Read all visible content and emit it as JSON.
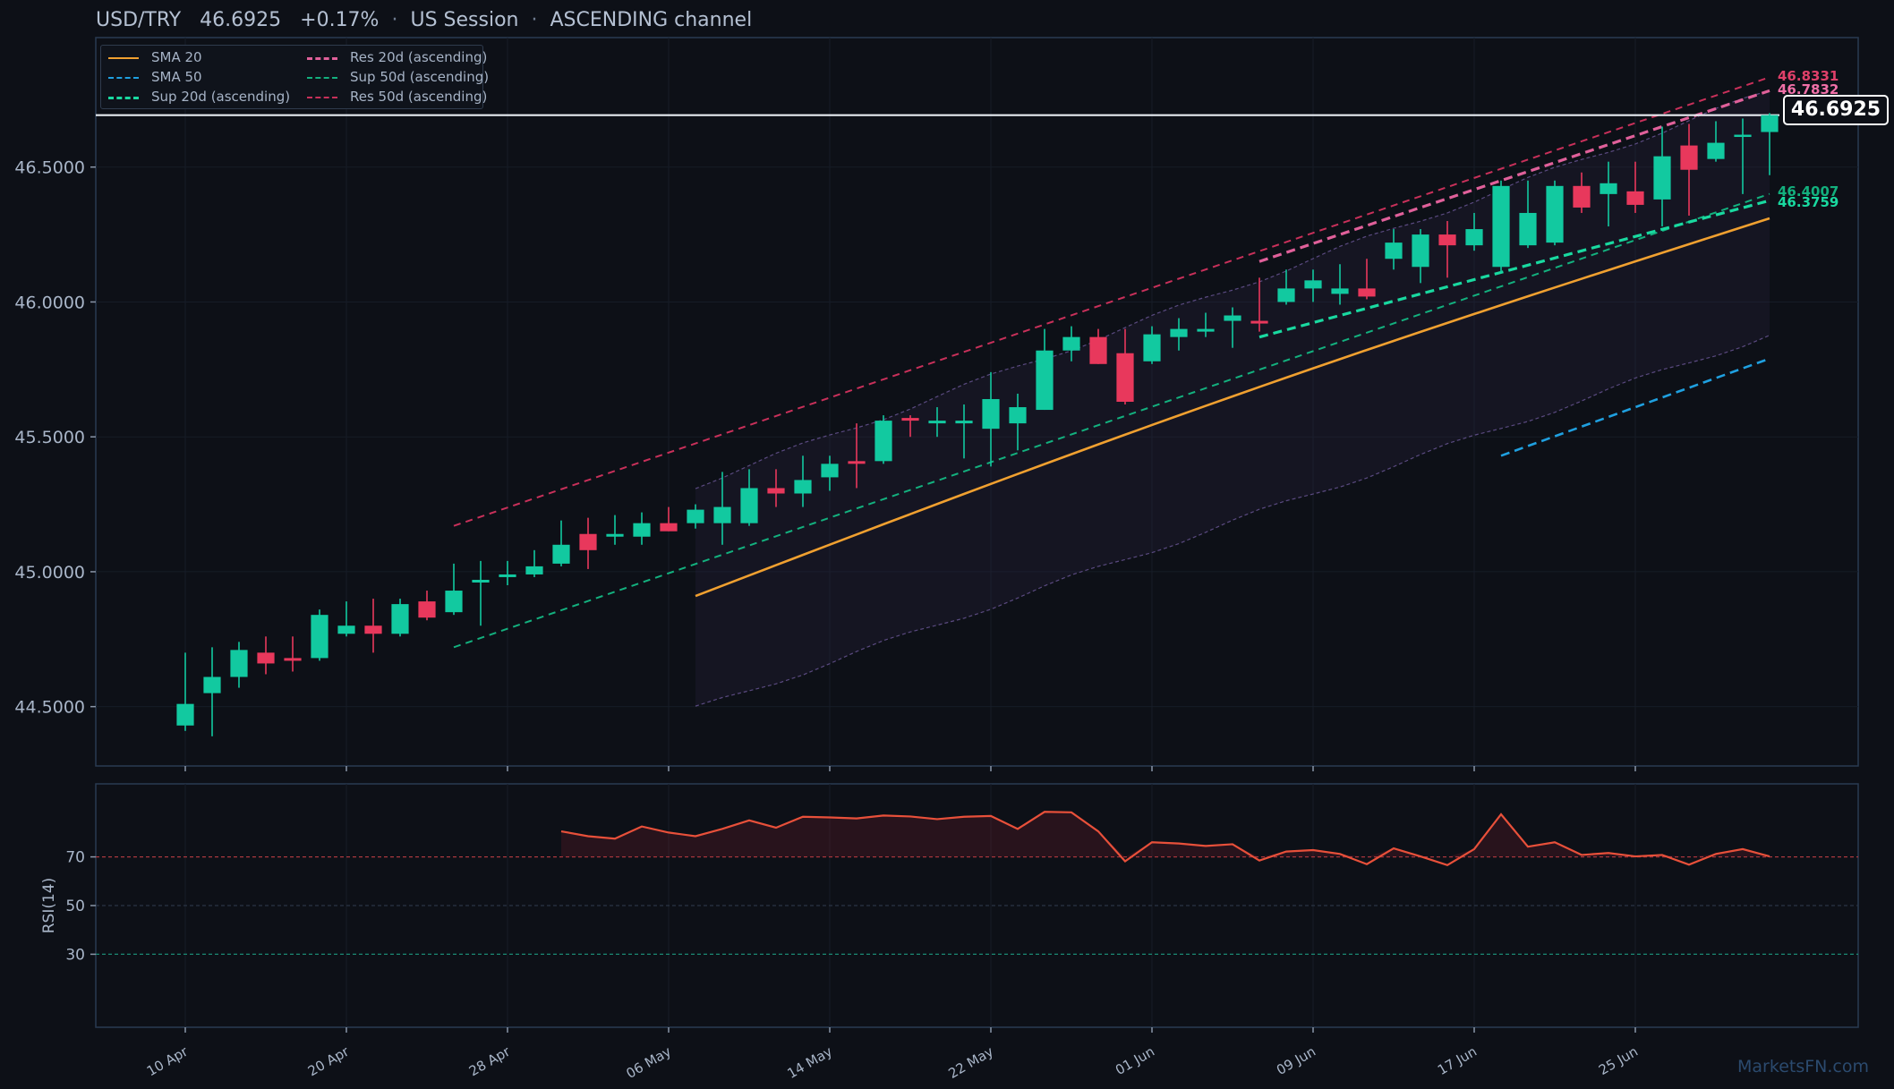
{
  "header": {
    "symbol": "USD/TRY",
    "price": "46.6925",
    "change": "+0.17%",
    "session": "US Session",
    "channel": "ASCENDING channel",
    "separator": "·"
  },
  "watermark": "MarketsFN.com",
  "legend": [
    {
      "label": "SMA 20",
      "color": "#f0a030",
      "style": "solid"
    },
    {
      "label": "SMA 50",
      "color": "#1fa0e0",
      "style": "dashed"
    },
    {
      "label": "Sup 20d (ascending)",
      "color": "#19d9a0",
      "style": "dashed"
    },
    {
      "label": "Res 20d (ascending)",
      "color": "#e0609a",
      "style": "dashed"
    },
    {
      "label": "Sup 50d (ascending)",
      "color": "#13b07e",
      "style": "dashed"
    },
    {
      "label": "Res 50d (ascending)",
      "color": "#c8305a",
      "style": "dashed"
    }
  ],
  "price_tag": "46.6925",
  "level_labels": [
    {
      "text": "46.8331",
      "color": "#e0406a",
      "value": 46.8331
    },
    {
      "text": "46.7832",
      "color": "#f070a8",
      "value": 46.7832
    },
    {
      "text": "46.4007",
      "color": "#13b07e",
      "value": 46.4007
    },
    {
      "text": "46.3759",
      "color": "#19d9a0",
      "value": 46.3759
    }
  ],
  "colors": {
    "up": "#12c9a0",
    "down": "#e8385c",
    "rsi": "#e8503a",
    "background": "#0d1017",
    "axis_text": "#a9b6c9"
  },
  "chart_data": [
    {
      "type": "candlestick",
      "title": "USD/TRY 46.6925 +0.17% · US Session · ASCENDING channel",
      "ylim": [
        44.28,
        46.98
      ],
      "yticks": [
        "44.5000",
        "45.0000",
        "45.5000",
        "46.0000",
        "46.5000"
      ],
      "xticks": [
        "10 Apr",
        "20 Apr",
        "28 Apr",
        "06 May",
        "14 May",
        "22 May",
        "01 Jun",
        "09 Jun",
        "17 Jun",
        "25 Jun"
      ],
      "last_price": 46.6925,
      "candles": [
        {
          "date": "10 Apr",
          "o": 44.43,
          "h": 44.7,
          "l": 44.41,
          "c": 44.51
        },
        {
          "date": "11 Apr",
          "o": 44.55,
          "h": 44.72,
          "l": 44.39,
          "c": 44.61
        },
        {
          "date": "14 Apr",
          "o": 44.61,
          "h": 44.74,
          "l": 44.57,
          "c": 44.71
        },
        {
          "date": "15 Apr",
          "o": 44.7,
          "h": 44.76,
          "l": 44.62,
          "c": 44.66
        },
        {
          "date": "16 Apr",
          "o": 44.68,
          "h": 44.76,
          "l": 44.63,
          "c": 44.67
        },
        {
          "date": "17 Apr",
          "o": 44.68,
          "h": 44.86,
          "l": 44.67,
          "c": 44.84
        },
        {
          "date": "18 Apr",
          "o": 44.77,
          "h": 44.89,
          "l": 44.76,
          "c": 44.8
        },
        {
          "date": "21 Apr",
          "o": 44.8,
          "h": 44.9,
          "l": 44.7,
          "c": 44.77
        },
        {
          "date": "22 Apr",
          "o": 44.77,
          "h": 44.9,
          "l": 44.76,
          "c": 44.88
        },
        {
          "date": "23 Apr",
          "o": 44.89,
          "h": 44.93,
          "l": 44.82,
          "c": 44.83
        },
        {
          "date": "24 Apr",
          "o": 44.85,
          "h": 45.03,
          "l": 44.84,
          "c": 44.93
        },
        {
          "date": "25 Apr",
          "o": 44.96,
          "h": 45.04,
          "l": 44.8,
          "c": 44.97
        },
        {
          "date": "28 Apr",
          "o": 44.98,
          "h": 45.04,
          "l": 44.95,
          "c": 44.99
        },
        {
          "date": "29 Apr",
          "o": 44.99,
          "h": 45.08,
          "l": 44.98,
          "c": 45.02
        },
        {
          "date": "30 Apr",
          "o": 45.03,
          "h": 45.19,
          "l": 45.02,
          "c": 45.1
        },
        {
          "date": "01 May",
          "o": 45.14,
          "h": 45.2,
          "l": 45.01,
          "c": 45.08
        },
        {
          "date": "02 May",
          "o": 45.13,
          "h": 45.21,
          "l": 45.1,
          "c": 45.14
        },
        {
          "date": "05 May",
          "o": 45.13,
          "h": 45.22,
          "l": 45.1,
          "c": 45.18
        },
        {
          "date": "06 May",
          "o": 45.18,
          "h": 45.24,
          "l": 45.15,
          "c": 45.15
        },
        {
          "date": "07 May",
          "o": 45.18,
          "h": 45.25,
          "l": 45.16,
          "c": 45.23
        },
        {
          "date": "08 May",
          "o": 45.18,
          "h": 45.37,
          "l": 45.1,
          "c": 45.24
        },
        {
          "date": "09 May",
          "o": 45.18,
          "h": 45.38,
          "l": 45.17,
          "c": 45.31
        },
        {
          "date": "12 May",
          "o": 45.31,
          "h": 45.38,
          "l": 45.24,
          "c": 45.29
        },
        {
          "date": "13 May",
          "o": 45.29,
          "h": 45.43,
          "l": 45.24,
          "c": 45.34
        },
        {
          "date": "14 May",
          "o": 45.35,
          "h": 45.43,
          "l": 45.3,
          "c": 45.4
        },
        {
          "date": "15 May",
          "o": 45.41,
          "h": 45.55,
          "l": 45.31,
          "c": 45.4
        },
        {
          "date": "16 May",
          "o": 45.41,
          "h": 45.58,
          "l": 45.4,
          "c": 45.56
        },
        {
          "date": "19 May",
          "o": 45.57,
          "h": 45.58,
          "l": 45.5,
          "c": 45.56
        },
        {
          "date": "20 May",
          "o": 45.55,
          "h": 45.61,
          "l": 45.5,
          "c": 45.56
        },
        {
          "date": "21 May",
          "o": 45.55,
          "h": 45.62,
          "l": 45.42,
          "c": 45.56
        },
        {
          "date": "22 May",
          "o": 45.53,
          "h": 45.74,
          "l": 45.39,
          "c": 45.64
        },
        {
          "date": "23 May",
          "o": 45.55,
          "h": 45.66,
          "l": 45.45,
          "c": 45.61
        },
        {
          "date": "26 May",
          "o": 45.6,
          "h": 45.9,
          "l": 45.6,
          "c": 45.82
        },
        {
          "date": "27 May",
          "o": 45.82,
          "h": 45.91,
          "l": 45.78,
          "c": 45.87
        },
        {
          "date": "28 May",
          "o": 45.87,
          "h": 45.9,
          "l": 45.77,
          "c": 45.77
        },
        {
          "date": "29 May",
          "o": 45.81,
          "h": 45.9,
          "l": 45.62,
          "c": 45.63
        },
        {
          "date": "30 May",
          "o": 45.78,
          "h": 45.91,
          "l": 45.77,
          "c": 45.88
        },
        {
          "date": "02 Jun",
          "o": 45.87,
          "h": 45.94,
          "l": 45.82,
          "c": 45.9
        },
        {
          "date": "03 Jun",
          "o": 45.89,
          "h": 45.96,
          "l": 45.87,
          "c": 45.9
        },
        {
          "date": "04 Jun",
          "o": 45.93,
          "h": 45.98,
          "l": 45.83,
          "c": 45.95
        },
        {
          "date": "05 Jun",
          "o": 45.93,
          "h": 46.09,
          "l": 45.89,
          "c": 45.92
        },
        {
          "date": "06 Jun",
          "o": 46.0,
          "h": 46.12,
          "l": 45.99,
          "c": 46.05
        },
        {
          "date": "09 Jun",
          "o": 46.05,
          "h": 46.12,
          "l": 46.0,
          "c": 46.08
        },
        {
          "date": "10 Jun",
          "o": 46.03,
          "h": 46.14,
          "l": 45.99,
          "c": 46.05
        },
        {
          "date": "11 Jun",
          "o": 46.05,
          "h": 46.16,
          "l": 46.01,
          "c": 46.02
        },
        {
          "date": "12 Jun",
          "o": 46.16,
          "h": 46.27,
          "l": 46.12,
          "c": 46.22
        },
        {
          "date": "13 Jun",
          "o": 46.13,
          "h": 46.27,
          "l": 46.07,
          "c": 46.25
        },
        {
          "date": "16 Jun",
          "o": 46.25,
          "h": 46.3,
          "l": 46.09,
          "c": 46.21
        },
        {
          "date": "17 Jun",
          "o": 46.21,
          "h": 46.33,
          "l": 46.19,
          "c": 46.27
        },
        {
          "date": "18 Jun",
          "o": 46.13,
          "h": 46.45,
          "l": 46.11,
          "c": 46.43
        },
        {
          "date": "19 Jun",
          "o": 46.21,
          "h": 46.45,
          "l": 46.2,
          "c": 46.33
        },
        {
          "date": "20 Jun",
          "o": 46.22,
          "h": 46.45,
          "l": 46.21,
          "c": 46.43
        },
        {
          "date": "23 Jun",
          "o": 46.43,
          "h": 46.48,
          "l": 46.33,
          "c": 46.35
        },
        {
          "date": "24 Jun",
          "o": 46.4,
          "h": 46.52,
          "l": 46.28,
          "c": 46.44
        },
        {
          "date": "25 Jun",
          "o": 46.41,
          "h": 46.52,
          "l": 46.33,
          "c": 46.36
        },
        {
          "date": "26 Jun",
          "o": 46.38,
          "h": 46.65,
          "l": 46.28,
          "c": 46.54
        },
        {
          "date": "27 Jun",
          "o": 46.58,
          "h": 46.66,
          "l": 46.32,
          "c": 46.49
        },
        {
          "date": "30 Jun",
          "o": 46.53,
          "h": 46.67,
          "l": 46.52,
          "c": 46.59
        },
        {
          "date": "01 Jul",
          "o": 46.62,
          "h": 46.68,
          "l": 46.4,
          "c": 46.62
        },
        {
          "date": "02 Jul",
          "o": 46.63,
          "h": 46.7,
          "l": 46.47,
          "c": 46.6925
        }
      ],
      "sma20": {
        "start_index": 19,
        "start": 44.91,
        "end": 46.31
      },
      "sma50": {
        "start_index": 49,
        "start": 45.43,
        "end": 45.79
      },
      "bands": {
        "start_index": 19,
        "upper": [
          45.32,
          46.78
        ],
        "lower": [
          44.49,
          45.88
        ]
      },
      "res_50d": {
        "start_index": 10,
        "start": 45.17,
        "end": 46.8331
      },
      "sup_50d": {
        "start_index": 10,
        "start": 44.72,
        "end": 46.4007
      },
      "res_20d": {
        "start_index": 40,
        "start": 46.15,
        "end": 46.7832
      },
      "sup_20d": {
        "start_index": 40,
        "start": 45.87,
        "end": 46.3759
      }
    },
    {
      "type": "line",
      "ylabel": "RSI(14)",
      "ylim": [
        0,
        100
      ],
      "yticks": [
        "30",
        "50",
        "70"
      ],
      "reference_lines": [
        70,
        50,
        30
      ],
      "start_index": 14,
      "values": [
        80.5,
        78.5,
        77.5,
        82.5,
        80,
        78.5,
        81.5,
        85,
        82,
        86.5,
        86.2,
        85.8,
        87,
        86.6,
        85.5,
        86.5,
        86.8,
        81.5,
        88.5,
        88.3,
        80.5,
        68.2,
        76,
        75.5,
        74.5,
        75.2,
        68.5,
        72.2,
        72.8,
        71.2,
        67,
        73.5,
        70.2,
        66.6,
        73.2,
        87.5,
        74.2,
        76,
        70.8,
        71.6,
        70.2,
        70.8,
        66.8,
        71.2,
        73.2,
        70.2
      ]
    }
  ]
}
